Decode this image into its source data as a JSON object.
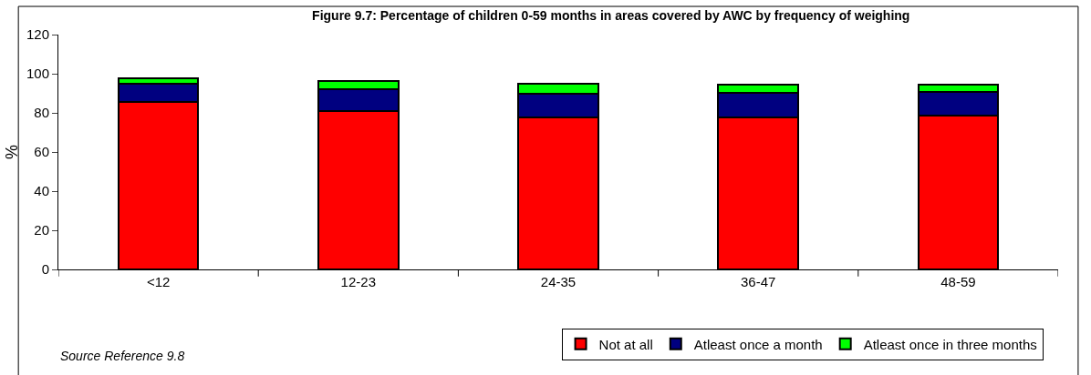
{
  "chart_data": {
    "type": "bar",
    "title": "Figure 9.7: Percentage of children 0-59 months in areas covered by AWC by frequency of weighing",
    "ylabel": "%",
    "categories": [
      "<12",
      "12-23",
      "24-35",
      "36-47",
      "48-59"
    ],
    "stacked": true,
    "series": [
      {
        "name": "Not at all",
        "color": "#ff0000",
        "values": [
          85.5,
          80.9,
          77.5,
          77.7,
          78.7
        ]
      },
      {
        "name": "Atleast once a month",
        "color": "#000080",
        "values": [
          9.3,
          11.1,
          12.5,
          12.5,
          11.8
        ]
      },
      {
        "name": "Atleast once in three months",
        "color": "#00ff00",
        "values": [
          2.7,
          4.1,
          5.0,
          4.0,
          4.1
        ]
      }
    ],
    "ylim": [
      0,
      120
    ],
    "yticks": [
      0,
      20,
      40,
      60,
      80,
      100,
      120
    ],
    "grid": false,
    "legend": "bottom right",
    "annotations": [
      "Source Reference 9.8"
    ]
  }
}
